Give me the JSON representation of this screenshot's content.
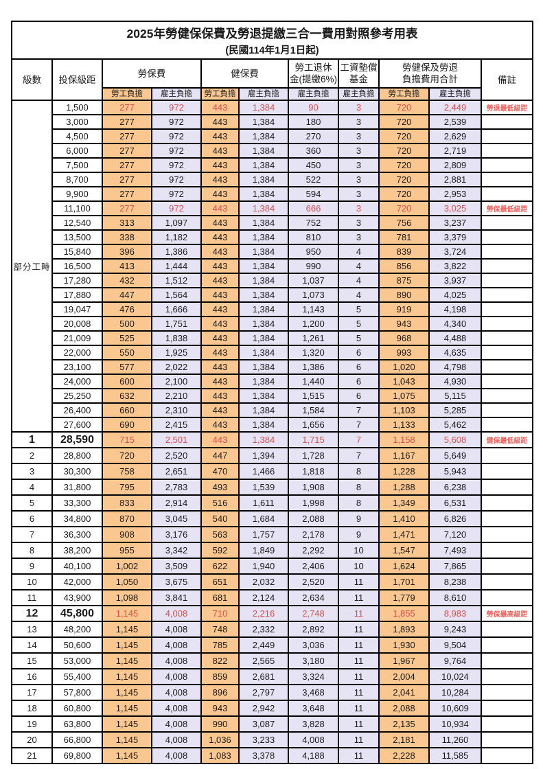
{
  "title": "2025年勞健保保費及勞退提繳三合一費用對照參考用表",
  "subtitle": "(民國114年1月1日起)",
  "columns": {
    "level": "級數",
    "bracket": "投保級距",
    "labor": "勞保費",
    "health": "健保費",
    "pension_l1": "勞工退休",
    "pension_l2": "金(提繳6%)",
    "wagefund_l1": "工資墊償",
    "wagefund_l2": "基金",
    "total_l1": "勞健保及勞退",
    "total_l2": "負擔費用合計",
    "remark": "備註",
    "employee": "勞工負擔",
    "employer": "雇主負擔"
  },
  "colors": {
    "employee_bg": "#F9C78F",
    "employer_bg": "#E6E4F4",
    "highlight_text": "#D94F4D",
    "remark_text": "#F1625E",
    "border": "#000000"
  },
  "sections": [
    {
      "type": "part_time",
      "label": "部分工時",
      "rows": [
        {
          "bracket": "1,500",
          "v": [
            "277",
            "972",
            "443",
            "1,384",
            "90",
            "3",
            "720",
            "2,449"
          ],
          "remark": "勞退最低級距",
          "red": true,
          "emph": false
        },
        {
          "bracket": "3,000",
          "v": [
            "277",
            "972",
            "443",
            "1,384",
            "180",
            "3",
            "720",
            "2,539"
          ],
          "remark": "",
          "red": false,
          "emph": false
        },
        {
          "bracket": "4,500",
          "v": [
            "277",
            "972",
            "443",
            "1,384",
            "270",
            "3",
            "720",
            "2,629"
          ],
          "remark": "",
          "red": false,
          "emph": false
        },
        {
          "bracket": "6,000",
          "v": [
            "277",
            "972",
            "443",
            "1,384",
            "360",
            "3",
            "720",
            "2,719"
          ],
          "remark": "",
          "red": false,
          "emph": false
        },
        {
          "bracket": "7,500",
          "v": [
            "277",
            "972",
            "443",
            "1,384",
            "450",
            "3",
            "720",
            "2,809"
          ],
          "remark": "",
          "red": false,
          "emph": false
        },
        {
          "bracket": "8,700",
          "v": [
            "277",
            "972",
            "443",
            "1,384",
            "522",
            "3",
            "720",
            "2,881"
          ],
          "remark": "",
          "red": false,
          "emph": false
        },
        {
          "bracket": "9,900",
          "v": [
            "277",
            "972",
            "443",
            "1,384",
            "594",
            "3",
            "720",
            "2,953"
          ],
          "remark": "",
          "red": false,
          "emph": false
        },
        {
          "bracket": "11,100",
          "v": [
            "277",
            "972",
            "443",
            "1,384",
            "666",
            "3",
            "720",
            "3,025"
          ],
          "remark": "勞保最低級距",
          "red": true,
          "emph": false
        },
        {
          "bracket": "12,540",
          "v": [
            "313",
            "1,097",
            "443",
            "1,384",
            "752",
            "3",
            "756",
            "3,237"
          ],
          "remark": "",
          "red": false,
          "emph": false
        },
        {
          "bracket": "13,500",
          "v": [
            "338",
            "1,182",
            "443",
            "1,384",
            "810",
            "3",
            "781",
            "3,379"
          ],
          "remark": "",
          "red": false,
          "emph": false
        },
        {
          "bracket": "15,840",
          "v": [
            "396",
            "1,386",
            "443",
            "1,384",
            "950",
            "4",
            "839",
            "3,724"
          ],
          "remark": "",
          "red": false,
          "emph": false
        },
        {
          "bracket": "16,500",
          "v": [
            "413",
            "1,444",
            "443",
            "1,384",
            "990",
            "4",
            "856",
            "3,822"
          ],
          "remark": "",
          "red": false,
          "emph": false
        },
        {
          "bracket": "17,280",
          "v": [
            "432",
            "1,512",
            "443",
            "1,384",
            "1,037",
            "4",
            "875",
            "3,937"
          ],
          "remark": "",
          "red": false,
          "emph": false
        },
        {
          "bracket": "17,880",
          "v": [
            "447",
            "1,564",
            "443",
            "1,384",
            "1,073",
            "4",
            "890",
            "4,025"
          ],
          "remark": "",
          "red": false,
          "emph": false
        },
        {
          "bracket": "19,047",
          "v": [
            "476",
            "1,666",
            "443",
            "1,384",
            "1,143",
            "5",
            "919",
            "4,198"
          ],
          "remark": "",
          "red": false,
          "emph": false
        },
        {
          "bracket": "20,008",
          "v": [
            "500",
            "1,751",
            "443",
            "1,384",
            "1,200",
            "5",
            "943",
            "4,340"
          ],
          "remark": "",
          "red": false,
          "emph": false
        },
        {
          "bracket": "21,009",
          "v": [
            "525",
            "1,838",
            "443",
            "1,384",
            "1,261",
            "5",
            "968",
            "4,488"
          ],
          "remark": "",
          "red": false,
          "emph": false
        },
        {
          "bracket": "22,000",
          "v": [
            "550",
            "1,925",
            "443",
            "1,384",
            "1,320",
            "6",
            "993",
            "4,635"
          ],
          "remark": "",
          "red": false,
          "emph": false
        },
        {
          "bracket": "23,100",
          "v": [
            "577",
            "2,022",
            "443",
            "1,384",
            "1,386",
            "6",
            "1,020",
            "4,798"
          ],
          "remark": "",
          "red": false,
          "emph": false
        },
        {
          "bracket": "24,000",
          "v": [
            "600",
            "2,100",
            "443",
            "1,384",
            "1,440",
            "6",
            "1,043",
            "4,930"
          ],
          "remark": "",
          "red": false,
          "emph": false
        },
        {
          "bracket": "25,250",
          "v": [
            "632",
            "2,210",
            "443",
            "1,384",
            "1,515",
            "6",
            "1,075",
            "5,115"
          ],
          "remark": "",
          "red": false,
          "emph": false
        },
        {
          "bracket": "26,400",
          "v": [
            "660",
            "2,310",
            "443",
            "1,384",
            "1,584",
            "7",
            "1,103",
            "5,285"
          ],
          "remark": "",
          "red": false,
          "emph": false
        },
        {
          "bracket": "27,600",
          "v": [
            "690",
            "2,415",
            "443",
            "1,384",
            "1,656",
            "7",
            "1,133",
            "5,462"
          ],
          "remark": "",
          "red": false,
          "emph": false
        }
      ]
    },
    {
      "type": "numbered",
      "rows": [
        {
          "level": "1",
          "bracket": "28,590",
          "v": [
            "715",
            "2,501",
            "443",
            "1,384",
            "1,715",
            "7",
            "1,158",
            "5,608"
          ],
          "remark": "健保最低級距",
          "red": true,
          "emph": true
        },
        {
          "level": "2",
          "bracket": "28,800",
          "v": [
            "720",
            "2,520",
            "447",
            "1,394",
            "1,728",
            "7",
            "1,167",
            "5,649"
          ],
          "remark": "",
          "red": false,
          "emph": false
        },
        {
          "level": "3",
          "bracket": "30,300",
          "v": [
            "758",
            "2,651",
            "470",
            "1,466",
            "1,818",
            "8",
            "1,228",
            "5,943"
          ],
          "remark": "",
          "red": false,
          "emph": false
        },
        {
          "level": "4",
          "bracket": "31,800",
          "v": [
            "795",
            "2,783",
            "493",
            "1,539",
            "1,908",
            "8",
            "1,288",
            "6,238"
          ],
          "remark": "",
          "red": false,
          "emph": false
        },
        {
          "level": "5",
          "bracket": "33,300",
          "v": [
            "833",
            "2,914",
            "516",
            "1,611",
            "1,998",
            "8",
            "1,349",
            "6,531"
          ],
          "remark": "",
          "red": false,
          "emph": false
        },
        {
          "level": "6",
          "bracket": "34,800",
          "v": [
            "870",
            "3,045",
            "540",
            "1,684",
            "2,088",
            "9",
            "1,410",
            "6,826"
          ],
          "remark": "",
          "red": false,
          "emph": false
        },
        {
          "level": "7",
          "bracket": "36,300",
          "v": [
            "908",
            "3,176",
            "563",
            "1,757",
            "2,178",
            "9",
            "1,471",
            "7,120"
          ],
          "remark": "",
          "red": false,
          "emph": false
        },
        {
          "level": "8",
          "bracket": "38,200",
          "v": [
            "955",
            "3,342",
            "592",
            "1,849",
            "2,292",
            "10",
            "1,547",
            "7,493"
          ],
          "remark": "",
          "red": false,
          "emph": false
        },
        {
          "level": "9",
          "bracket": "40,100",
          "v": [
            "1,002",
            "3,509",
            "622",
            "1,940",
            "2,406",
            "10",
            "1,624",
            "7,865"
          ],
          "remark": "",
          "red": false,
          "emph": false
        },
        {
          "level": "10",
          "bracket": "42,000",
          "v": [
            "1,050",
            "3,675",
            "651",
            "2,032",
            "2,520",
            "11",
            "1,701",
            "8,238"
          ],
          "remark": "",
          "red": false,
          "emph": false
        },
        {
          "level": "11",
          "bracket": "43,900",
          "v": [
            "1,098",
            "3,841",
            "681",
            "2,124",
            "2,634",
            "11",
            "1,779",
            "8,610"
          ],
          "remark": "",
          "red": false,
          "emph": false
        },
        {
          "level": "12",
          "bracket": "45,800",
          "v": [
            "1,145",
            "4,008",
            "710",
            "2,216",
            "2,748",
            "11",
            "1,855",
            "8,983"
          ],
          "remark": "勞保最高級距",
          "red": true,
          "emph": true
        },
        {
          "level": "13",
          "bracket": "48,200",
          "v": [
            "1,145",
            "4,008",
            "748",
            "2,332",
            "2,892",
            "11",
            "1,893",
            "9,243"
          ],
          "remark": "",
          "red": false,
          "emph": false
        },
        {
          "level": "14",
          "bracket": "50,600",
          "v": [
            "1,145",
            "4,008",
            "785",
            "2,449",
            "3,036",
            "11",
            "1,930",
            "9,504"
          ],
          "remark": "",
          "red": false,
          "emph": false
        },
        {
          "level": "15",
          "bracket": "53,000",
          "v": [
            "1,145",
            "4,008",
            "822",
            "2,565",
            "3,180",
            "11",
            "1,967",
            "9,764"
          ],
          "remark": "",
          "red": false,
          "emph": false
        },
        {
          "level": "16",
          "bracket": "55,400",
          "v": [
            "1,145",
            "4,008",
            "859",
            "2,681",
            "3,324",
            "11",
            "2,004",
            "10,024"
          ],
          "remark": "",
          "red": false,
          "emph": false
        },
        {
          "level": "17",
          "bracket": "57,800",
          "v": [
            "1,145",
            "4,008",
            "896",
            "2,797",
            "3,468",
            "11",
            "2,041",
            "10,284"
          ],
          "remark": "",
          "red": false,
          "emph": false
        },
        {
          "level": "18",
          "bracket": "60,800",
          "v": [
            "1,145",
            "4,008",
            "943",
            "2,942",
            "3,648",
            "11",
            "2,088",
            "10,609"
          ],
          "remark": "",
          "red": false,
          "emph": false
        },
        {
          "level": "19",
          "bracket": "63,800",
          "v": [
            "1,145",
            "4,008",
            "990",
            "3,087",
            "3,828",
            "11",
            "2,135",
            "10,934"
          ],
          "remark": "",
          "red": false,
          "emph": false
        },
        {
          "level": "20",
          "bracket": "66,800",
          "v": [
            "1,145",
            "4,008",
            "1,036",
            "3,233",
            "4,008",
            "11",
            "2,181",
            "11,260"
          ],
          "remark": "",
          "red": false,
          "emph": false
        },
        {
          "level": "21",
          "bracket": "69,800",
          "v": [
            "1,145",
            "4,008",
            "1,083",
            "3,378",
            "4,188",
            "11",
            "2,228",
            "11,585"
          ],
          "remark": "",
          "red": false,
          "emph": false
        }
      ]
    }
  ]
}
